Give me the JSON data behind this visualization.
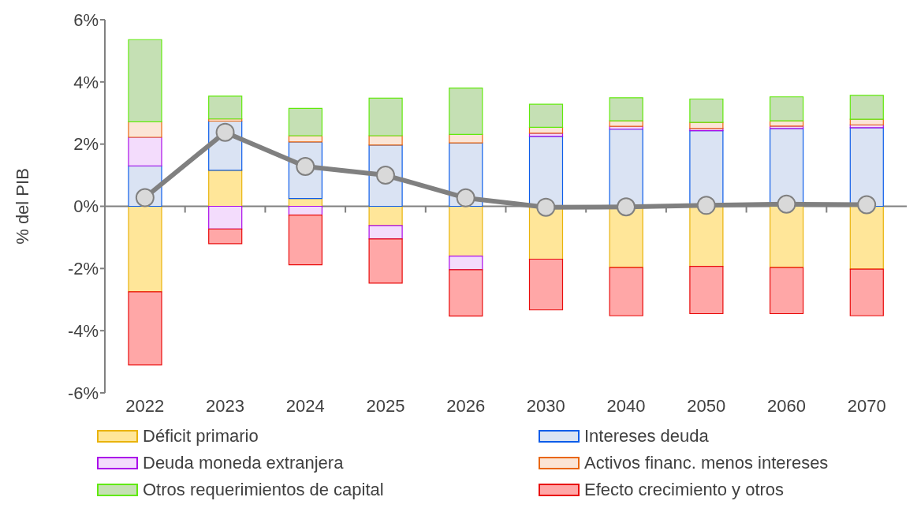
{
  "chart_data": {
    "type": "bar",
    "stacked": true,
    "ylabel": "% del PIB",
    "categories": [
      "2022",
      "2023",
      "2024",
      "2025",
      "2026",
      "2030",
      "2040",
      "2050",
      "2060",
      "2070"
    ],
    "ylim": [
      -6,
      6
    ],
    "yticks": [
      {
        "value": -6,
        "label": "-6%"
      },
      {
        "value": -4,
        "label": "-4%"
      },
      {
        "value": -2,
        "label": "-2%"
      },
      {
        "value": 0,
        "label": "0%"
      },
      {
        "value": 2,
        "label": "2%"
      },
      {
        "value": 4,
        "label": "4%"
      },
      {
        "value": 6,
        "label": "6%"
      }
    ],
    "legend": "bottom",
    "marker": "circle",
    "line_style": "solid",
    "series": [
      {
        "name": "Déficit primario",
        "color": "#ffe699",
        "values": [
          -2.75,
          1.16,
          0.25,
          -0.62,
          -1.6,
          -1.7,
          -1.97,
          -1.93,
          -1.97,
          -2.02
        ]
      },
      {
        "name": "Intereses deuda",
        "color": "#dae3f3",
        "values": [
          1.3,
          1.58,
          1.82,
          1.97,
          2.04,
          2.25,
          2.48,
          2.43,
          2.5,
          2.53
        ]
      },
      {
        "name": "Deuda moneda extranjera",
        "color": "#f3dcfc",
        "values": [
          0.92,
          -0.73,
          -0.28,
          -0.43,
          -0.44,
          0.1,
          0.09,
          0.07,
          0.08,
          0.09
        ]
      },
      {
        "name": "Activos financ. menos intereses",
        "color": "#fbe5d6",
        "values": [
          0.5,
          0.07,
          0.2,
          0.3,
          0.27,
          0.19,
          0.18,
          0.2,
          0.17,
          0.18
        ]
      },
      {
        "name": "Otros requerimientos de capital",
        "color": "#c5e0b4",
        "values": [
          2.64,
          0.73,
          0.88,
          1.21,
          1.49,
          0.74,
          0.74,
          0.75,
          0.77,
          0.77
        ]
      },
      {
        "name": "Efecto crecimiento y otros",
        "color": "#ffa7a7",
        "values": [
          -2.35,
          -0.47,
          -1.6,
          -1.42,
          -1.49,
          -1.63,
          -1.55,
          -1.52,
          -1.48,
          -1.5
        ]
      },
      {
        "type": "line",
        "color": "#808080",
        "values": [
          0.28,
          2.38,
          1.28,
          1.0,
          0.27,
          -0.03,
          -0.02,
          0.03,
          0.07,
          0.05
        ]
      }
    ]
  }
}
